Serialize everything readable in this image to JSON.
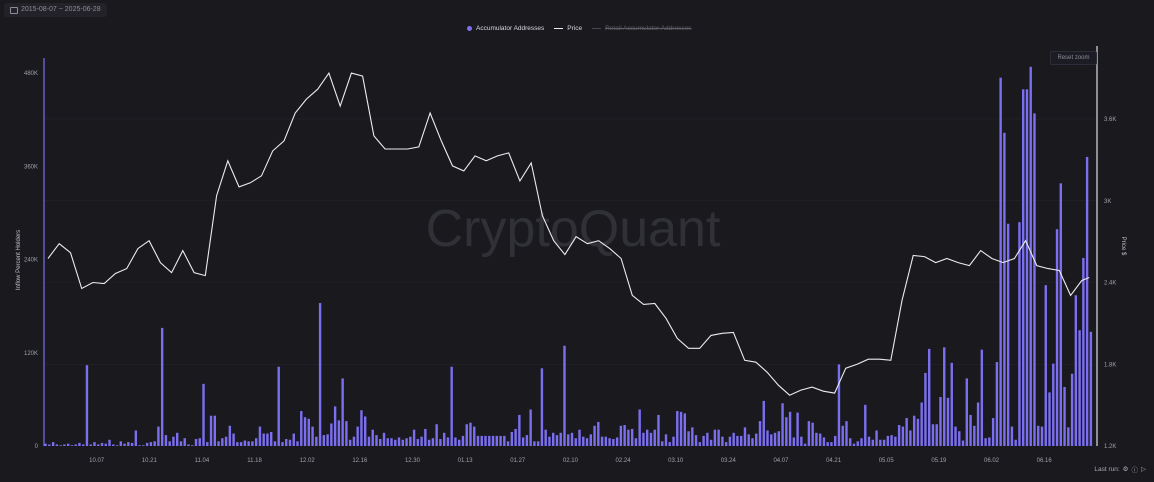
{
  "header": {
    "date_range": "2015-08-07 ~ 2025-06-28",
    "reset_zoom": "Reset zoom",
    "last_run": "Last run: ",
    "last_run_icons": [
      "settings-icon",
      "info-icon",
      "play-icon"
    ]
  },
  "watermark": "CryptoQuant",
  "colors": {
    "background": "#19191e",
    "bars": "#7b6ff0",
    "price": "#ececf0",
    "retail": "#55555e"
  },
  "chart_data": {
    "type": "bar+line",
    "legend": [
      {
        "name": "Accumulator Addresses",
        "marker": "dot",
        "visible": true
      },
      {
        "name": "Price",
        "marker": "line",
        "visible": true
      },
      {
        "name": "Retail Accumulator Addresses",
        "marker": "line",
        "visible": false
      }
    ],
    "legend_position": "top-center",
    "ylabel_left": "Inflow Percent Holders",
    "ylabel_right": "Price $",
    "yticks_left": [
      "0",
      "120K",
      "240K",
      "360K",
      "480K"
    ],
    "ylim_left": [
      0,
      480000
    ],
    "yticks_right": [
      "1.2K",
      "1.8K",
      "2.4K",
      "3K",
      "3.6K"
    ],
    "ylim_right": [
      1200,
      3600
    ],
    "xticks": [
      "10.07",
      "10.21",
      "11.04",
      "11.18",
      "12.02",
      "12.16",
      "12.30",
      "01.13",
      "01.27",
      "02.10",
      "02.24",
      "03.10",
      "03.24",
      "04.07",
      "04.21",
      "05.05",
      "05.19",
      "06.02",
      "06.16"
    ],
    "x_start": "2024-09-23",
    "bar_interval_days": 1,
    "price_interval_days": 3,
    "grid": true,
    "accumulator_addresses": [
      3000,
      2000,
      5000,
      2000,
      1000,
      2000,
      3000,
      1000,
      2000,
      4000,
      2000,
      104000,
      2000,
      5000,
      2000,
      4000,
      3000,
      8000,
      2000,
      1000,
      6000,
      3000,
      5000,
      4000,
      20000,
      1000,
      1000,
      4000,
      5000,
      6000,
      25000,
      152000,
      14000,
      6000,
      12000,
      17000,
      6000,
      10000,
      2000,
      1000,
      9000,
      10000,
      80000,
      5000,
      39000,
      39000,
      6000,
      10000,
      12000,
      26000,
      16000,
      5000,
      5000,
      7000,
      6000,
      6000,
      10000,
      25000,
      16000,
      16000,
      18000,
      6000,
      102000,
      5000,
      9000,
      8000,
      16000,
      6000,
      45000,
      37000,
      35000,
      25000,
      12000,
      184000,
      14000,
      15000,
      29000,
      51000,
      33000,
      87000,
      32000,
      8000,
      12000,
      25000,
      46000,
      38000,
      12000,
      21000,
      14000,
      9000,
      17000,
      10000,
      10000,
      8000,
      11000,
      8000,
      10000,
      12000,
      21000,
      9000,
      12000,
      22000,
      8000,
      10000,
      28000,
      9000,
      17000,
      11000,
      102000,
      11000,
      8000,
      13000,
      28000,
      30000,
      25000,
      13000,
      13000,
      13000,
      13000,
      13000,
      13000,
      13000,
      13000,
      6000,
      18000,
      22000,
      40000,
      11000,
      14000,
      47000,
      6000,
      6000,
      100000,
      21000,
      12000,
      17000,
      14000,
      17000,
      129000,
      15000,
      17000,
      10000,
      21000,
      12000,
      10000,
      15000,
      26000,
      31000,
      12000,
      12000,
      10000,
      9000,
      11000,
      26000,
      27000,
      21000,
      22000,
      10000,
      47000,
      17000,
      21000,
      17000,
      21000,
      40000,
      6000,
      15000,
      5000,
      12000,
      45000,
      44000,
      42000,
      19000,
      24000,
      14000,
      5000,
      13000,
      17000,
      8000,
      21000,
      21000,
      12000,
      5000,
      12000,
      17000,
      13000,
      13000,
      24000,
      15000,
      10000,
      16000,
      32000,
      58000,
      20000,
      15000,
      17000,
      19000,
      55000,
      37000,
      44000,
      11000,
      43000,
      12000,
      3000,
      32000,
      30000,
      17000,
      16000,
      11000,
      5000,
      5000,
      13000,
      105000,
      26000,
      32000,
      10000,
      3000,
      6000,
      10000,
      53000,
      12000,
      8000,
      20000,
      8000,
      8000,
      13000,
      14000,
      12000,
      27000,
      25000,
      36000,
      20000,
      39000,
      35000,
      56000,
      94000,
      125000,
      28000,
      28000,
      63000,
      127000,
      62000,
      107000,
      25000,
      19000,
      7000,
      87000,
      40000,
      26000,
      56000,
      124000,
      10000,
      11000,
      36000,
      108000,
      474000,
      403000,
      286000,
      25000,
      8000,
      288000,
      459000,
      459000,
      488000,
      428000,
      26000,
      25000,
      207000,
      69000,
      106000,
      279000,
      338000,
      76000,
      24000,
      93000,
      194000,
      149000,
      242000,
      372000,
      147000
    ],
    "price": [
      2576,
      2685,
      2619,
      2356,
      2400,
      2393,
      2466,
      2502,
      2649,
      2707,
      2546,
      2473,
      2634,
      2473,
      2451,
      3037,
      3293,
      3102,
      3132,
      3183,
      3366,
      3439,
      3644,
      3746,
      3819,
      3937,
      3695,
      3937,
      3915,
      3476,
      3380,
      3380,
      3380,
      3395,
      3644,
      3439,
      3256,
      3219,
      3329,
      3293,
      3329,
      3351,
      3146,
      3278,
      2890,
      2707,
      2605,
      2737,
      2685,
      2707,
      2649,
      2576,
      2305,
      2239,
      2246,
      2137,
      1990,
      1917,
      1917,
      2012,
      2027,
      2034,
      1829,
      1815,
      1741,
      1646,
      1573,
      1610,
      1632,
      1602,
      1588,
      1771,
      1800,
      1837,
      1837,
      1829,
      2268,
      2598,
      2590,
      2546,
      2576,
      2546,
      2524,
      2634,
      2576,
      2546,
      2576,
      2707,
      2524,
      2502,
      2488,
      2305,
      2415,
      2437
    ]
  }
}
